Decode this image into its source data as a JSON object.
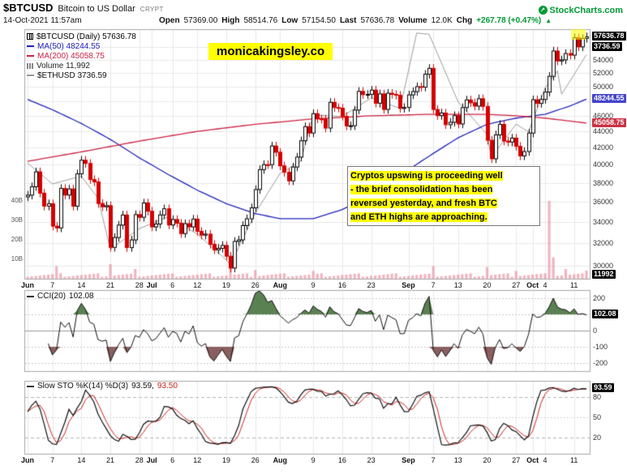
{
  "header": {
    "symbol": "$BTCUSD",
    "name": "Bitcoin to US Dollar",
    "exchange": "CRYPT",
    "brand": "StockCharts.com",
    "brand_icon": "↗",
    "datetime": "14-Oct-2021 11:57am",
    "quote": {
      "open_label": "Open",
      "open": "57369.00",
      "high_label": "High",
      "high": "58514.76",
      "low_label": "Low",
      "low": "57154.50",
      "last_label": "Last",
      "last": "57636.78",
      "volume_label": "Volume",
      "volume": "12.0K",
      "chg_label": "Chg",
      "chg": "+267.78 (+0.47%)",
      "chg_icon": "▲"
    }
  },
  "watermark": "monicakingsley.co",
  "annotation": {
    "lines": [
      "Cryptos upswing is proceeding well",
      "- the brief consolidation has been",
      "reversed yesterday, and fresh BTC",
      "and ETH highs are approaching."
    ]
  },
  "legend": {
    "main": [
      {
        "icon": "candle",
        "text": "$BTCUSD (Daily) 57636.78",
        "color": "#000000"
      },
      {
        "icon": "line",
        "text": "MA(50) 48244.55",
        "color": "#2222bb"
      },
      {
        "icon": "line",
        "text": "MA(200) 45058.75",
        "color": "#cc2244"
      },
      {
        "icon": "vol",
        "text": "Volume 11,992",
        "color": "#222222",
        "icon_color": "#888888"
      },
      {
        "icon": "line",
        "text": "$ETHUSD 3736.59",
        "color": "#111111",
        "icon_color": "#999999"
      }
    ]
  },
  "indicators": {
    "cci": {
      "label": "CCI(20)",
      "value": "102.08"
    },
    "sto": {
      "label": "Slow STO %K(14) %D(3)",
      "k": "93.59,",
      "d": "93.50"
    }
  },
  "colors": {
    "up": "#000000",
    "down": "#d40000",
    "ma50": "#2222bb",
    "ma200": "#cc2244",
    "eth": "#9a9a9a",
    "volume": "rgba(228,120,140,0.55)",
    "cci_fill_up": "#5a8152",
    "cci_fill_dn": "#8a5f5f",
    "accent_green": "#009933",
    "highlight": "#ffff00"
  },
  "chart_data": [
    {
      "type": "candlestick",
      "symbol": "$BTCUSD",
      "period": "Daily",
      "last": 57636.78,
      "scale": "log",
      "start_date": "2021-06-01",
      "end_date": "2021-10-14",
      "ylim": [
        28900,
        58900
      ],
      "close": [
        36684,
        37575,
        39208,
        36894,
        35551,
        35796,
        33575,
        33407,
        37388,
        36693,
        37338,
        35546,
        38980,
        40526,
        40158,
        38349,
        38092,
        35819,
        35483,
        35600,
        31608,
        32505,
        33678,
        34663,
        31584,
        32283,
        34700,
        34434,
        35868,
        35041,
        33504,
        33786,
        34669,
        35286,
        33690,
        34220,
        33862,
        32875,
        33815,
        33503,
        34259,
        33086,
        32729,
        32820,
        31880,
        31383,
        31520,
        31778,
        30817,
        29790,
        32144,
        32287,
        33634,
        34290,
        35382,
        37276,
        39457,
        40020,
        40016,
        42206,
        41461,
        39878,
        39154,
        38210,
        39747,
        40888,
        42840,
        44600,
        43798,
        46285,
        45593,
        45575,
        44417,
        47800,
        47100,
        47018,
        45927,
        44686,
        44714,
        46760,
        49322,
        48868,
        48900,
        49500,
        47680,
        48970,
        46840,
        49060,
        48900,
        48780,
        46980,
        47110,
        48830,
        49290,
        49990,
        49920,
        51790,
        52670,
        46840,
        46030,
        46370,
        44850,
        45160,
        46030,
        44940,
        47090,
        48130,
        47740,
        47290,
        48300,
        47250,
        42900,
        40690,
        43570,
        44890,
        42810,
        42680,
        43170,
        42160,
        41030,
        41540,
        43790,
        48160,
        47660,
        48200,
        49220,
        51490,
        55340,
        53800,
        53960,
        54950,
        54690,
        57480,
        56000,
        57370,
        57636.78
      ],
      "y_tick_labels": [
        54000,
        52000,
        50000,
        46000,
        44000,
        42000,
        40000,
        38000,
        36000,
        34000,
        32000,
        30000
      ],
      "grid_levels": [
        56000,
        54000,
        52000,
        50000,
        48000,
        46000,
        44000,
        42000,
        40000,
        38000,
        36000,
        34000,
        32000,
        30000
      ],
      "badges": [
        {
          "text": "57636.78",
          "value": 57636.78,
          "bg": "#000000"
        },
        {
          "text": "3736.59",
          "pin": "eth",
          "bg": "#000000"
        },
        {
          "text": "48244.55",
          "value": 48244.55,
          "bg": "#4444cc"
        },
        {
          "text": "45058.75",
          "value": 45058.75,
          "bg": "#cc3344"
        },
        {
          "text": "11992",
          "pin": "bottom",
          "bg": "#000000"
        }
      ],
      "overlays": [
        {
          "name": "MA(50)",
          "last": 48244.55,
          "color_key": "ma50",
          "points": [
            [
              0,
              48200
            ],
            [
              6,
              46800
            ],
            [
              13,
              45000
            ],
            [
              20,
              43000
            ],
            [
              27,
              40800
            ],
            [
              34,
              38900
            ],
            [
              41,
              37200
            ],
            [
              48,
              35800
            ],
            [
              55,
              34800
            ],
            [
              61,
              34300
            ],
            [
              69,
              34300
            ],
            [
              76,
              35200
            ],
            [
              83,
              36700
            ],
            [
              90,
              38800
            ],
            [
              97,
              41000
            ],
            [
              104,
              43200
            ],
            [
              111,
              44900
            ],
            [
              118,
              45700
            ],
            [
              125,
              46200
            ],
            [
              131,
              47300
            ],
            [
              135,
              48244.55
            ]
          ]
        },
        {
          "name": "MA(200)",
          "last": 45058.75,
          "color_key": "ma200",
          "points": [
            [
              0,
              40400
            ],
            [
              13,
              41500
            ],
            [
              27,
              42800
            ],
            [
              41,
              44000
            ],
            [
              55,
              44900
            ],
            [
              69,
              45600
            ],
            [
              83,
              46000
            ],
            [
              97,
              46200
            ],
            [
              111,
              46200
            ],
            [
              118,
              46000
            ],
            [
              125,
              45700
            ],
            [
              135,
              45058.75
            ]
          ]
        },
        {
          "name": "$ETHUSD",
          "last": 3736.59,
          "color_key": "eth",
          "axis": "secondary",
          "ylim": [
            1700,
            3900
          ],
          "points": [
            [
              0,
              2706
            ],
            [
              6,
              2508
            ],
            [
              13,
              2581
            ],
            [
              17,
              2373
            ],
            [
              20,
              1888
            ],
            [
              27,
              2084
            ],
            [
              34,
              2196
            ],
            [
              41,
              2031
            ],
            [
              48,
              1786
            ],
            [
              49,
              1742
            ],
            [
              55,
              2231
            ],
            [
              61,
              2608
            ],
            [
              66,
              2725
            ],
            [
              69,
              3163
            ],
            [
              76,
              3148
            ],
            [
              83,
              3324
            ],
            [
              90,
              3224
            ],
            [
              94,
              3940
            ],
            [
              97,
              3928
            ],
            [
              104,
              3287
            ],
            [
              111,
              2977
            ],
            [
              112,
              2760
            ],
            [
              118,
              3076
            ],
            [
              121,
              3001
            ],
            [
              125,
              3418
            ],
            [
              128,
              3580
            ],
            [
              129,
              3360
            ],
            [
              132,
              3545
            ],
            [
              135,
              3736.59
            ]
          ]
        }
      ],
      "volume": {
        "last_label": "11,992",
        "unit": "B",
        "axis_labels": [
          {
            "v": 40,
            "t": "40B"
          },
          {
            "v": 30,
            "t": "30B"
          },
          {
            "v": 20,
            "t": "20B"
          },
          {
            "v": 10,
            "t": "10B"
          }
        ],
        "base": 2.0,
        "points": [
          [
            7,
            6.5
          ],
          [
            20,
            7.5
          ],
          [
            26,
            5
          ],
          [
            49,
            6
          ],
          [
            55,
            4.5
          ],
          [
            69,
            4
          ],
          [
            98,
            6.5
          ],
          [
            111,
            6
          ],
          [
            118,
            4
          ],
          [
            126,
            40
          ],
          [
            127,
            11
          ],
          [
            130,
            5
          ],
          [
            135,
            4.2
          ]
        ]
      },
      "x_ticks": [
        {
          "i": 0,
          "label": "Jun",
          "bold": true
        },
        {
          "i": 6,
          "label": "7"
        },
        {
          "i": 13,
          "label": "14"
        },
        {
          "i": 20,
          "label": "21"
        },
        {
          "i": 27,
          "label": "28"
        },
        {
          "i": 30,
          "label": "Jul",
          "bold": true
        },
        {
          "i": 35,
          "label": "6"
        },
        {
          "i": 41,
          "label": "12"
        },
        {
          "i": 48,
          "label": "19"
        },
        {
          "i": 55,
          "label": "26"
        },
        {
          "i": 61,
          "label": "Aug",
          "bold": true
        },
        {
          "i": 69,
          "label": "9"
        },
        {
          "i": 76,
          "label": "16"
        },
        {
          "i": 83,
          "label": "23"
        },
        {
          "i": 92,
          "label": "Sep",
          "bold": true
        },
        {
          "i": 98,
          "label": "7"
        },
        {
          "i": 104,
          "label": "13"
        },
        {
          "i": 111,
          "label": "20"
        },
        {
          "i": 118,
          "label": "27"
        },
        {
          "i": 122,
          "label": "Oct",
          "bold": true
        },
        {
          "i": 125,
          "label": "4"
        },
        {
          "i": 132,
          "label": "11"
        }
      ]
    },
    {
      "type": "line",
      "name": "CCI(20)",
      "period": 20,
      "last": 102.08,
      "ylim": [
        -250,
        250
      ],
      "y_ticks": [
        200,
        100,
        0,
        -100,
        -200
      ],
      "bands": {
        "upper": 100,
        "lower": -100
      },
      "derivation": "CCI(20) computed from close series of chart_data[0]"
    },
    {
      "type": "line",
      "name": "Slow STO %K(14) %D(3)",
      "k_last": 93.59,
      "d_last": 93.5,
      "ylim": [
        0,
        100
      ],
      "y_ticks": [
        80,
        50,
        20
      ],
      "derivation": "Slow stochastic %K(14,3) and %D(3) computed from close series of chart_data[0]"
    }
  ]
}
